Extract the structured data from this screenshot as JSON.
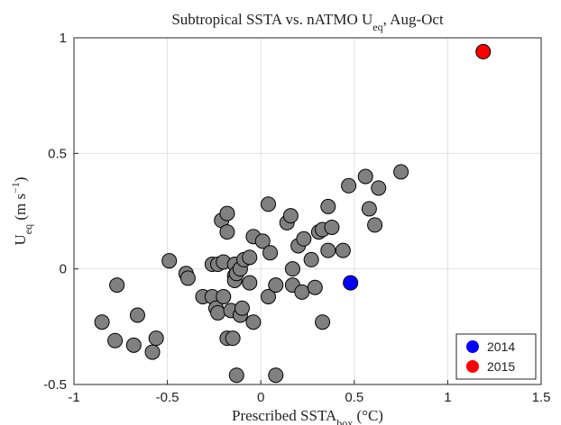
{
  "chart_data": {
    "type": "scatter",
    "title": [
      {
        "text": "Subtropical SSTA vs. nATMO U"
      },
      {
        "text": "eq",
        "shift": "sub"
      },
      {
        "text": ", Aug-Oct"
      }
    ],
    "xlabel": [
      {
        "text": "Prescribed SSTA"
      },
      {
        "text": "box",
        "shift": "sub"
      },
      {
        "text": " (°C)"
      }
    ],
    "ylabel": [
      {
        "text": "U"
      },
      {
        "text": "eq",
        "shift": "sub"
      },
      {
        "text": " (m s"
      },
      {
        "text": "−1",
        "shift": "super"
      },
      {
        "text": ")"
      }
    ],
    "xlim": [
      -1,
      1.5
    ],
    "xticks": [
      -1,
      -0.5,
      0,
      0.5,
      1,
      1.5
    ],
    "ylim": [
      -0.5,
      1
    ],
    "yticks": [
      -0.5,
      0,
      0.5,
      1
    ],
    "grid": true,
    "legend": "lower right",
    "series": [
      {
        "color": "#808080",
        "x": [
          -0.85,
          -0.78,
          -0.77,
          -0.68,
          -0.66,
          -0.58,
          -0.56,
          -0.49,
          -0.4,
          -0.39,
          -0.31,
          -0.26,
          -0.26,
          -0.24,
          -0.23,
          -0.23,
          -0.21,
          -0.2,
          -0.18,
          -0.18,
          -0.2,
          -0.18,
          -0.16,
          -0.15,
          -0.14,
          -0.14,
          -0.14,
          -0.13,
          -0.13,
          -0.11,
          -0.11,
          -0.1,
          -0.09,
          -0.06,
          -0.06,
          -0.04,
          -0.04,
          0.01,
          0.04,
          0.04,
          0.05,
          0.08,
          0.08,
          0.14,
          0.16,
          0.17,
          0.17,
          0.2,
          0.22,
          0.23,
          0.27,
          0.29,
          0.31,
          0.33,
          0.33,
          0.36,
          0.36,
          0.38,
          0.44,
          0.47,
          0.56,
          0.58,
          0.61,
          0.63,
          0.75
        ],
        "values": [
          -0.23,
          -0.31,
          -0.07,
          -0.33,
          -0.2,
          -0.36,
          -0.3,
          0.035,
          -0.02,
          -0.04,
          -0.12,
          0.02,
          -0.12,
          -0.17,
          0.02,
          -0.19,
          0.21,
          0.03,
          0.24,
          0.16,
          -0.12,
          -0.3,
          -0.18,
          -0.3,
          0.02,
          -0.03,
          -0.05,
          -0.02,
          -0.46,
          0.0,
          -0.2,
          -0.17,
          0.04,
          0.05,
          -0.06,
          -0.23,
          0.14,
          0.12,
          0.28,
          -0.12,
          0.07,
          -0.07,
          -0.46,
          0.2,
          0.23,
          0.0,
          -0.07,
          0.1,
          -0.1,
          0.13,
          0.04,
          -0.08,
          0.16,
          0.17,
          -0.23,
          0.27,
          0.08,
          0.18,
          0.08,
          0.36,
          0.4,
          0.26,
          0.19,
          0.35,
          0.42
        ]
      },
      {
        "name": "2014",
        "color": "#0000ff",
        "x": [
          0.48
        ],
        "values": [
          -0.06
        ]
      },
      {
        "name": "2015",
        "color": "#ff0000",
        "x": [
          1.19
        ],
        "values": [
          0.94
        ]
      }
    ]
  }
}
